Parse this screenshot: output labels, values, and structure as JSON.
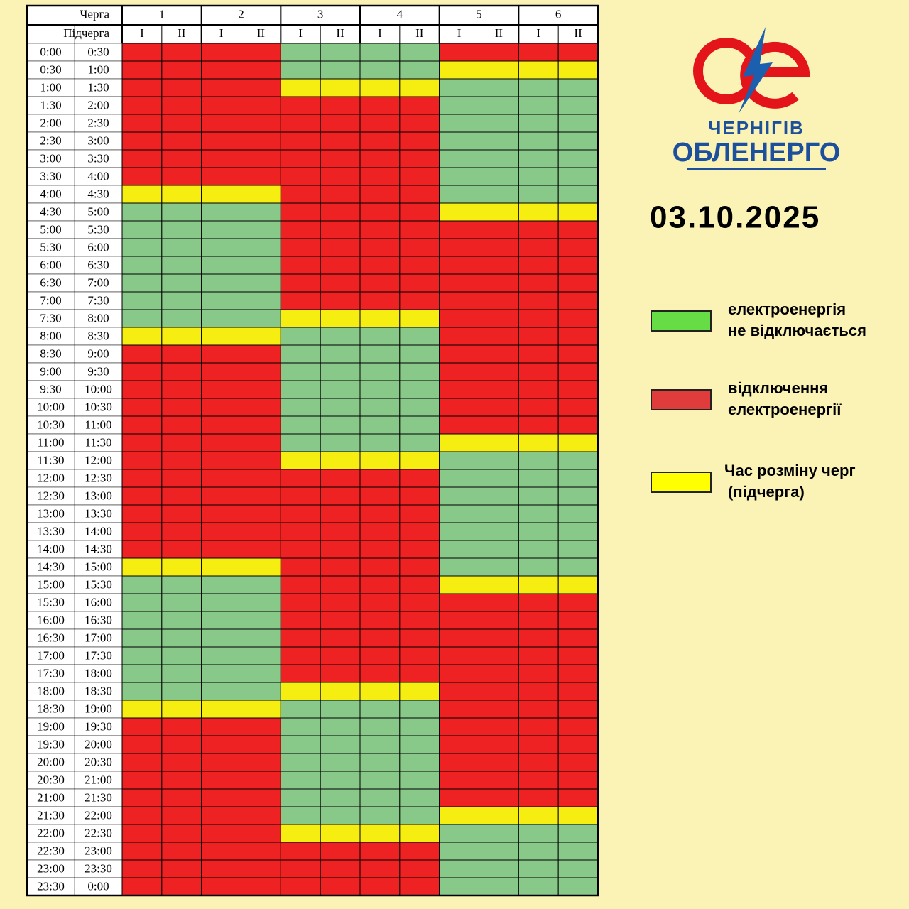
{
  "header": {
    "queue_label": "Черга",
    "subqueue_label": "Підчерга",
    "queues": [
      "1",
      "2",
      "3",
      "4",
      "5",
      "6"
    ],
    "subqueues": [
      "I",
      "II"
    ]
  },
  "rows": [
    {
      "from": "0:00",
      "to": "0:30",
      "cells": [
        1,
        1,
        1,
        1,
        0,
        0,
        0,
        0,
        1,
        1,
        1,
        1
      ]
    },
    {
      "from": "0:30",
      "to": "1:00",
      "cells": [
        1,
        1,
        1,
        1,
        0,
        0,
        0,
        0,
        2,
        2,
        2,
        2
      ]
    },
    {
      "from": "1:00",
      "to": "1:30",
      "cells": [
        1,
        1,
        1,
        1,
        2,
        2,
        2,
        2,
        0,
        0,
        0,
        0
      ]
    },
    {
      "from": "1:30",
      "to": "2:00",
      "cells": [
        1,
        1,
        1,
        1,
        1,
        1,
        1,
        1,
        0,
        0,
        0,
        0
      ]
    },
    {
      "from": "2:00",
      "to": "2:30",
      "cells": [
        1,
        1,
        1,
        1,
        1,
        1,
        1,
        1,
        0,
        0,
        0,
        0
      ]
    },
    {
      "from": "2:30",
      "to": "3:00",
      "cells": [
        1,
        1,
        1,
        1,
        1,
        1,
        1,
        1,
        0,
        0,
        0,
        0
      ]
    },
    {
      "from": "3:00",
      "to": "3:30",
      "cells": [
        1,
        1,
        1,
        1,
        1,
        1,
        1,
        1,
        0,
        0,
        0,
        0
      ]
    },
    {
      "from": "3:30",
      "to": "4:00",
      "cells": [
        1,
        1,
        1,
        1,
        1,
        1,
        1,
        1,
        0,
        0,
        0,
        0
      ]
    },
    {
      "from": "4:00",
      "to": "4:30",
      "cells": [
        2,
        2,
        2,
        2,
        1,
        1,
        1,
        1,
        0,
        0,
        0,
        0
      ]
    },
    {
      "from": "4:30",
      "to": "5:00",
      "cells": [
        0,
        0,
        0,
        0,
        1,
        1,
        1,
        1,
        2,
        2,
        2,
        2
      ]
    },
    {
      "from": "5:00",
      "to": "5:30",
      "cells": [
        0,
        0,
        0,
        0,
        1,
        1,
        1,
        1,
        1,
        1,
        1,
        1
      ]
    },
    {
      "from": "5:30",
      "to": "6:00",
      "cells": [
        0,
        0,
        0,
        0,
        1,
        1,
        1,
        1,
        1,
        1,
        1,
        1
      ]
    },
    {
      "from": "6:00",
      "to": "6:30",
      "cells": [
        0,
        0,
        0,
        0,
        1,
        1,
        1,
        1,
        1,
        1,
        1,
        1
      ]
    },
    {
      "from": "6:30",
      "to": "7:00",
      "cells": [
        0,
        0,
        0,
        0,
        1,
        1,
        1,
        1,
        1,
        1,
        1,
        1
      ]
    },
    {
      "from": "7:00",
      "to": "7:30",
      "cells": [
        0,
        0,
        0,
        0,
        1,
        1,
        1,
        1,
        1,
        1,
        1,
        1
      ]
    },
    {
      "from": "7:30",
      "to": "8:00",
      "cells": [
        0,
        0,
        0,
        0,
        2,
        2,
        2,
        2,
        1,
        1,
        1,
        1
      ]
    },
    {
      "from": "8:00",
      "to": "8:30",
      "cells": [
        2,
        2,
        2,
        2,
        0,
        0,
        0,
        0,
        1,
        1,
        1,
        1
      ]
    },
    {
      "from": "8:30",
      "to": "9:00",
      "cells": [
        1,
        1,
        1,
        1,
        0,
        0,
        0,
        0,
        1,
        1,
        1,
        1
      ]
    },
    {
      "from": "9:00",
      "to": "9:30",
      "cells": [
        1,
        1,
        1,
        1,
        0,
        0,
        0,
        0,
        1,
        1,
        1,
        1
      ]
    },
    {
      "from": "9:30",
      "to": "10:00",
      "cells": [
        1,
        1,
        1,
        1,
        0,
        0,
        0,
        0,
        1,
        1,
        1,
        1
      ]
    },
    {
      "from": "10:00",
      "to": "10:30",
      "cells": [
        1,
        1,
        1,
        1,
        0,
        0,
        0,
        0,
        1,
        1,
        1,
        1
      ]
    },
    {
      "from": "10:30",
      "to": "11:00",
      "cells": [
        1,
        1,
        1,
        1,
        0,
        0,
        0,
        0,
        1,
        1,
        1,
        1
      ]
    },
    {
      "from": "11:00",
      "to": "11:30",
      "cells": [
        1,
        1,
        1,
        1,
        0,
        0,
        0,
        0,
        2,
        2,
        2,
        2
      ]
    },
    {
      "from": "11:30",
      "to": "12:00",
      "cells": [
        1,
        1,
        1,
        1,
        2,
        2,
        2,
        2,
        0,
        0,
        0,
        0
      ]
    },
    {
      "from": "12:00",
      "to": "12:30",
      "cells": [
        1,
        1,
        1,
        1,
        1,
        1,
        1,
        1,
        0,
        0,
        0,
        0
      ]
    },
    {
      "from": "12:30",
      "to": "13:00",
      "cells": [
        1,
        1,
        1,
        1,
        1,
        1,
        1,
        1,
        0,
        0,
        0,
        0
      ]
    },
    {
      "from": "13:00",
      "to": "13:30",
      "cells": [
        1,
        1,
        1,
        1,
        1,
        1,
        1,
        1,
        0,
        0,
        0,
        0
      ]
    },
    {
      "from": "13:30",
      "to": "14:00",
      "cells": [
        1,
        1,
        1,
        1,
        1,
        1,
        1,
        1,
        0,
        0,
        0,
        0
      ]
    },
    {
      "from": "14:00",
      "to": "14:30",
      "cells": [
        1,
        1,
        1,
        1,
        1,
        1,
        1,
        1,
        0,
        0,
        0,
        0
      ]
    },
    {
      "from": "14:30",
      "to": "15:00",
      "cells": [
        2,
        2,
        2,
        2,
        1,
        1,
        1,
        1,
        0,
        0,
        0,
        0
      ]
    },
    {
      "from": "15:00",
      "to": "15:30",
      "cells": [
        0,
        0,
        0,
        0,
        1,
        1,
        1,
        1,
        2,
        2,
        2,
        2
      ]
    },
    {
      "from": "15:30",
      "to": "16:00",
      "cells": [
        0,
        0,
        0,
        0,
        1,
        1,
        1,
        1,
        1,
        1,
        1,
        1
      ]
    },
    {
      "from": "16:00",
      "to": "16:30",
      "cells": [
        0,
        0,
        0,
        0,
        1,
        1,
        1,
        1,
        1,
        1,
        1,
        1
      ]
    },
    {
      "from": "16:30",
      "to": "17:00",
      "cells": [
        0,
        0,
        0,
        0,
        1,
        1,
        1,
        1,
        1,
        1,
        1,
        1
      ]
    },
    {
      "from": "17:00",
      "to": "17:30",
      "cells": [
        0,
        0,
        0,
        0,
        1,
        1,
        1,
        1,
        1,
        1,
        1,
        1
      ]
    },
    {
      "from": "17:30",
      "to": "18:00",
      "cells": [
        0,
        0,
        0,
        0,
        1,
        1,
        1,
        1,
        1,
        1,
        1,
        1
      ]
    },
    {
      "from": "18:00",
      "to": "18:30",
      "cells": [
        0,
        0,
        0,
        0,
        2,
        2,
        2,
        2,
        1,
        1,
        1,
        1
      ]
    },
    {
      "from": "18:30",
      "to": "19:00",
      "cells": [
        2,
        2,
        2,
        2,
        0,
        0,
        0,
        0,
        1,
        1,
        1,
        1
      ]
    },
    {
      "from": "19:00",
      "to": "19:30",
      "cells": [
        1,
        1,
        1,
        1,
        0,
        0,
        0,
        0,
        1,
        1,
        1,
        1
      ]
    },
    {
      "from": "19:30",
      "to": "20:00",
      "cells": [
        1,
        1,
        1,
        1,
        0,
        0,
        0,
        0,
        1,
        1,
        1,
        1
      ]
    },
    {
      "from": "20:00",
      "to": "20:30",
      "cells": [
        1,
        1,
        1,
        1,
        0,
        0,
        0,
        0,
        1,
        1,
        1,
        1
      ]
    },
    {
      "from": "20:30",
      "to": "21:00",
      "cells": [
        1,
        1,
        1,
        1,
        0,
        0,
        0,
        0,
        1,
        1,
        1,
        1
      ]
    },
    {
      "from": "21:00",
      "to": "21:30",
      "cells": [
        1,
        1,
        1,
        1,
        0,
        0,
        0,
        0,
        1,
        1,
        1,
        1
      ]
    },
    {
      "from": "21:30",
      "to": "22:00",
      "cells": [
        1,
        1,
        1,
        1,
        0,
        0,
        0,
        0,
        2,
        2,
        2,
        2
      ]
    },
    {
      "from": "22:00",
      "to": "22:30",
      "cells": [
        1,
        1,
        1,
        1,
        2,
        2,
        2,
        2,
        0,
        0,
        0,
        0
      ]
    },
    {
      "from": "22:30",
      "to": "23:00",
      "cells": [
        1,
        1,
        1,
        1,
        1,
        1,
        1,
        1,
        0,
        0,
        0,
        0
      ]
    },
    {
      "from": "23:00",
      "to": "23:30",
      "cells": [
        1,
        1,
        1,
        1,
        1,
        1,
        1,
        1,
        0,
        0,
        0,
        0
      ]
    },
    {
      "from": "23:30",
      "to": "0:00",
      "cells": [
        1,
        1,
        1,
        1,
        1,
        1,
        1,
        1,
        0,
        0,
        0,
        0
      ]
    }
  ],
  "logo": {
    "line1": "ЧЕРНІГІВ",
    "line2": "ОБЛЕНЕРГО"
  },
  "date": "03.10.2025",
  "legend": [
    {
      "color": "#88c98a",
      "swatch": "#66dd44",
      "lines": [
        "електроенергія",
        "не відключається"
      ]
    },
    {
      "color": "#ee2222",
      "swatch": "#e03c3c",
      "lines": [
        "відключення",
        "електроенергії"
      ]
    },
    {
      "color": "#f5ee10",
      "swatch": "#ffff00",
      "lines": [
        "Час розміну черг",
        "(підчерга)"
      ]
    }
  ]
}
